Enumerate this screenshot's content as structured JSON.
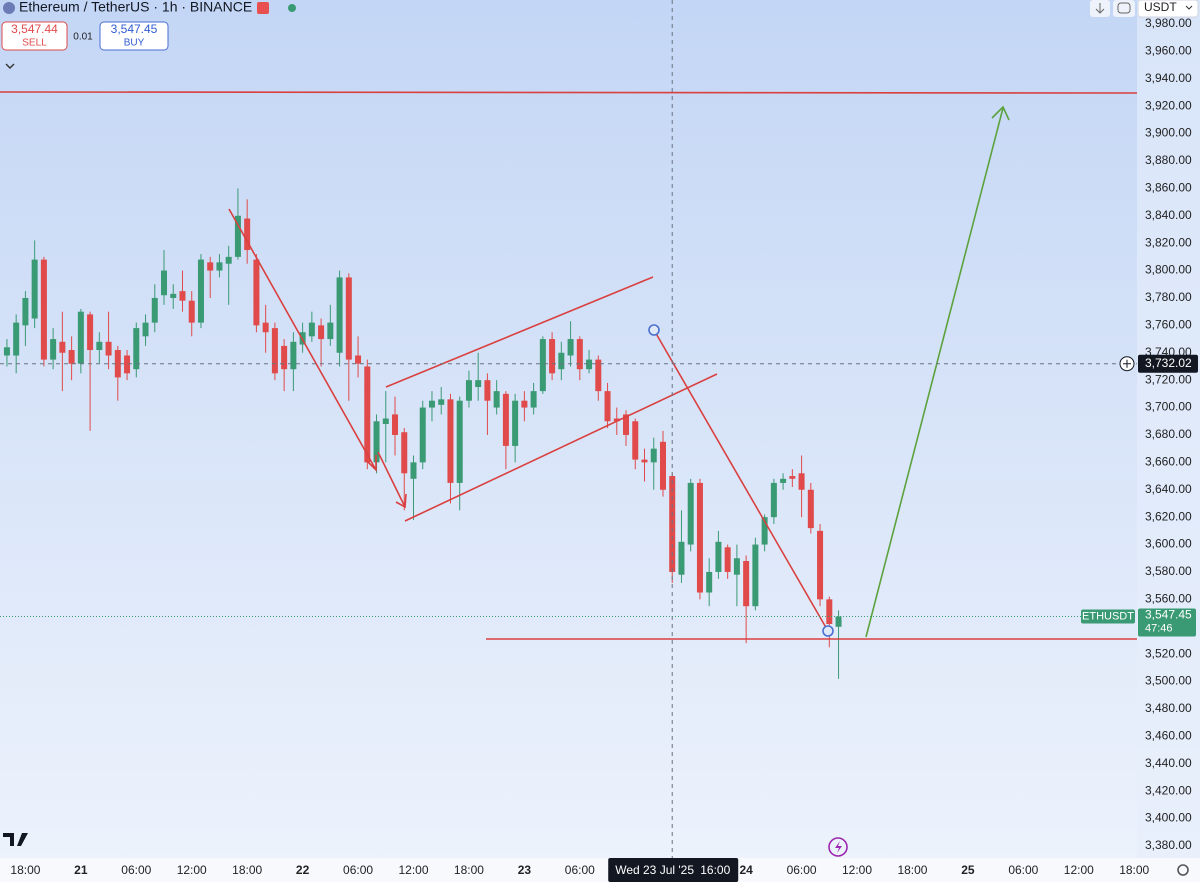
{
  "header": {
    "title": "Ethereum / TetherUS · 1h · BINANCE",
    "sell_price": "3,547.44",
    "sell_label": "SELL",
    "spread": "0.01",
    "buy_price": "3,547.45",
    "buy_label": "BUY",
    "currency": "USDT"
  },
  "chart_data": {
    "type": "candlestick",
    "x": [
      "2025-07-20T16:00",
      "2025-07-20T17:00",
      "2025-07-20T18:00",
      "2025-07-20T19:00",
      "2025-07-20T20:00",
      "2025-07-20T21:00",
      "2025-07-20T22:00",
      "2025-07-20T23:00",
      "2025-07-21T00:00",
      "2025-07-21T01:00",
      "2025-07-21T02:00",
      "2025-07-21T03:00",
      "2025-07-21T04:00",
      "2025-07-21T05:00",
      "2025-07-21T06:00",
      "2025-07-21T07:00",
      "2025-07-21T08:00",
      "2025-07-21T09:00",
      "2025-07-21T10:00",
      "2025-07-21T11:00",
      "2025-07-21T12:00",
      "2025-07-21T13:00",
      "2025-07-21T14:00",
      "2025-07-21T15:00",
      "2025-07-21T16:00",
      "2025-07-21T17:00",
      "2025-07-21T18:00",
      "2025-07-21T19:00",
      "2025-07-21T20:00",
      "2025-07-21T21:00",
      "2025-07-21T22:00",
      "2025-07-21T23:00",
      "2025-07-22T00:00",
      "2025-07-22T01:00",
      "2025-07-22T02:00",
      "2025-07-22T03:00",
      "2025-07-22T04:00",
      "2025-07-22T05:00",
      "2025-07-22T06:00",
      "2025-07-22T07:00",
      "2025-07-22T08:00",
      "2025-07-22T09:00",
      "2025-07-22T10:00",
      "2025-07-22T11:00",
      "2025-07-22T12:00",
      "2025-07-22T13:00",
      "2025-07-22T14:00",
      "2025-07-22T15:00",
      "2025-07-22T16:00",
      "2025-07-22T17:00",
      "2025-07-22T18:00",
      "2025-07-22T19:00",
      "2025-07-22T20:00",
      "2025-07-22T21:00",
      "2025-07-22T22:00",
      "2025-07-22T23:00",
      "2025-07-23T00:00",
      "2025-07-23T01:00",
      "2025-07-23T02:00",
      "2025-07-23T03:00",
      "2025-07-23T04:00",
      "2025-07-23T05:00",
      "2025-07-23T06:00",
      "2025-07-23T07:00",
      "2025-07-23T08:00",
      "2025-07-23T09:00",
      "2025-07-23T10:00",
      "2025-07-23T11:00",
      "2025-07-23T12:00",
      "2025-07-23T13:00",
      "2025-07-23T14:00",
      "2025-07-23T15:00",
      "2025-07-23T16:00",
      "2025-07-23T17:00",
      "2025-07-23T18:00",
      "2025-07-23T19:00",
      "2025-07-23T20:00",
      "2025-07-23T21:00",
      "2025-07-23T22:00",
      "2025-07-23T23:00",
      "2025-07-24T00:00",
      "2025-07-24T01:00",
      "2025-07-24T02:00",
      "2025-07-24T03:00",
      "2025-07-24T04:00",
      "2025-07-24T05:00",
      "2025-07-24T06:00",
      "2025-07-24T07:00",
      "2025-07-24T08:00",
      "2025-07-24T09:00",
      "2025-07-24T10:00"
    ],
    "open": [
      3738,
      3738,
      3760,
      3765,
      3808,
      3735,
      3748,
      3742,
      3732,
      3768,
      3742,
      3748,
      3742,
      3738,
      3728,
      3752,
      3762,
      3782,
      3780,
      3785,
      3778,
      3762,
      3806,
      3800,
      3805,
      3810,
      3838,
      3808,
      3762,
      3758,
      3745,
      3728,
      3746,
      3752,
      3760,
      3750,
      3740,
      3795,
      3738,
      3730,
      3660,
      3688,
      3695,
      3682,
      3648,
      3660,
      3700,
      3702,
      3706,
      3645,
      3705,
      3715,
      3720,
      3700,
      3710,
      3672,
      3705,
      3700,
      3712,
      3750,
      3728,
      3738,
      3750,
      3728,
      3735,
      3712,
      3692,
      3695,
      3690,
      3662,
      3660,
      3675,
      3650,
      3578,
      3600,
      3645,
      3565,
      3580,
      3598,
      3578,
      3588,
      3555,
      3600,
      3620,
      3645,
      3650,
      3652,
      3640,
      3610,
      3560,
      3540
    ],
    "high": [
      3750,
      3768,
      3785,
      3822,
      3810,
      3758,
      3770,
      3752,
      3772,
      3770,
      3755,
      3770,
      3745,
      3742,
      3762,
      3768,
      3790,
      3815,
      3790,
      3800,
      3785,
      3812,
      3810,
      3812,
      3818,
      3860,
      3852,
      3812,
      3775,
      3762,
      3750,
      3755,
      3762,
      3770,
      3765,
      3775,
      3800,
      3798,
      3752,
      3735,
      3695,
      3712,
      3708,
      3685,
      3665,
      3705,
      3712,
      3715,
      3710,
      3708,
      3727,
      3740,
      3725,
      3720,
      3712,
      3710,
      3712,
      3718,
      3752,
      3755,
      3748,
      3763,
      3752,
      3742,
      3738,
      3718,
      3700,
      3698,
      3692,
      3670,
      3678,
      3683,
      3652,
      3625,
      3648,
      3648,
      3590,
      3610,
      3600,
      3600,
      3592,
      3605,
      3622,
      3648,
      3652,
      3655,
      3665,
      3645,
      3615,
      3562,
      3552
    ],
    "low": [
      3730,
      3725,
      3745,
      3758,
      3730,
      3728,
      3712,
      3720,
      3725,
      3683,
      3732,
      3728,
      3705,
      3720,
      3722,
      3745,
      3755,
      3775,
      3772,
      3770,
      3752,
      3758,
      3780,
      3795,
      3775,
      3808,
      3805,
      3755,
      3740,
      3720,
      3712,
      3712,
      3740,
      3748,
      3730,
      3745,
      3730,
      3705,
      3722,
      3655,
      3652,
      3660,
      3665,
      3625,
      3618,
      3655,
      3690,
      3695,
      3630,
      3625,
      3700,
      3705,
      3680,
      3695,
      3655,
      3660,
      3690,
      3695,
      3710,
      3720,
      3720,
      3730,
      3720,
      3725,
      3705,
      3685,
      3680,
      3672,
      3655,
      3646,
      3640,
      3635,
      3572,
      3572,
      3595,
      3560,
      3555,
      3575,
      3575,
      3555,
      3528,
      3552,
      3595,
      3615,
      3640,
      3642,
      3620,
      3608,
      3555,
      3525,
      3502
    ],
    "close": [
      3744,
      3762,
      3780,
      3808,
      3735,
      3750,
      3740,
      3732,
      3770,
      3742,
      3748,
      3738,
      3722,
      3725,
      3758,
      3762,
      3780,
      3800,
      3783,
      3778,
      3762,
      3808,
      3800,
      3806,
      3810,
      3840,
      3815,
      3760,
      3755,
      3725,
      3728,
      3748,
      3755,
      3762,
      3750,
      3762,
      3795,
      3735,
      3732,
      3660,
      3690,
      3692,
      3680,
      3652,
      3660,
      3700,
      3705,
      3706,
      3645,
      3705,
      3720,
      3720,
      3705,
      3712,
      3672,
      3705,
      3700,
      3712,
      3750,
      3725,
      3740,
      3750,
      3728,
      3735,
      3712,
      3690,
      3690,
      3680,
      3662,
      3660,
      3670,
      3640,
      3580,
      3602,
      3645,
      3565,
      3580,
      3602,
      3580,
      3590,
      3555,
      3600,
      3620,
      3645,
      3648,
      3648,
      3640,
      3612,
      3560,
      3542,
      3547.45
    ],
    "up_color": "#3a9a74",
    "down_color": "#e04a4a",
    "ylim": [
      3371.2,
      3997.5
    ],
    "yticks": [
      {
        "value": 3380,
        "label": "3,380.00"
      },
      {
        "value": 3400,
        "label": "3,400.00"
      },
      {
        "value": 3420,
        "label": "3,420.00"
      },
      {
        "value": 3440,
        "label": "3,440.00"
      },
      {
        "value": 3460,
        "label": "3,460.00"
      },
      {
        "value": 3480,
        "label": "3,480.00"
      },
      {
        "value": 3500,
        "label": "3,500.00"
      },
      {
        "value": 3520,
        "label": "3,520.00"
      },
      {
        "value": 3540,
        "label": "3,540.00"
      },
      {
        "value": 3560,
        "label": "3,560.00"
      },
      {
        "value": 3580,
        "label": "3,580.00"
      },
      {
        "value": 3600,
        "label": "3,600.00"
      },
      {
        "value": 3620,
        "label": "3,620.00"
      },
      {
        "value": 3640,
        "label": "3,640.00"
      },
      {
        "value": 3660,
        "label": "3,660.00"
      },
      {
        "value": 3680,
        "label": "3,680.00"
      },
      {
        "value": 3700,
        "label": "3,700.00"
      },
      {
        "value": 3720,
        "label": "3,720.00"
      },
      {
        "value": 3740,
        "label": "3,740.00"
      },
      {
        "value": 3760,
        "label": "3,760.00"
      },
      {
        "value": 3780,
        "label": "3,780.00"
      },
      {
        "value": 3800,
        "label": "3,800.00"
      },
      {
        "value": 3820,
        "label": "3,820.00"
      },
      {
        "value": 3840,
        "label": "3,840.00"
      },
      {
        "value": 3860,
        "label": "3,860.00"
      },
      {
        "value": 3880,
        "label": "3,880.00"
      },
      {
        "value": 3900,
        "label": "3,900.00"
      },
      {
        "value": 3920,
        "label": "3,920.00"
      },
      {
        "value": 3940,
        "label": "3,940.00"
      },
      {
        "value": 3960,
        "label": "3,960.00"
      },
      {
        "value": 3980,
        "label": "3,980.00"
      }
    ],
    "xlim": [
      "2025-07-20T15:15",
      "2025-07-25T18:18"
    ],
    "xticks": [
      {
        "value": "2025-07-20T18:00",
        "label": "18:00"
      },
      {
        "value": "2025-07-21T00:00",
        "label": "21"
      },
      {
        "value": "2025-07-21T06:00",
        "label": "06:00"
      },
      {
        "value": "2025-07-21T12:00",
        "label": "12:00"
      },
      {
        "value": "2025-07-21T18:00",
        "label": "18:00"
      },
      {
        "value": "2025-07-22T00:00",
        "label": "22"
      },
      {
        "value": "2025-07-22T06:00",
        "label": "06:00"
      },
      {
        "value": "2025-07-22T12:00",
        "label": "12:00"
      },
      {
        "value": "2025-07-22T18:00",
        "label": "18:00"
      },
      {
        "value": "2025-07-23T00:00",
        "label": "23"
      },
      {
        "value": "2025-07-23T06:00",
        "label": "06:00"
      },
      {
        "value": "2025-07-23T12:00",
        "label": "12:00"
      },
      {
        "value": "2025-07-23T18:00",
        "label": "18:00"
      },
      {
        "value": "2025-07-24T00:00",
        "label": "24"
      },
      {
        "value": "2025-07-24T06:00",
        "label": "06:00"
      },
      {
        "value": "2025-07-24T12:00",
        "label": "12:00"
      },
      {
        "value": "2025-07-24T18:00",
        "label": "18:00"
      },
      {
        "value": "2025-07-25T00:00",
        "label": "25"
      },
      {
        "value": "2025-07-25T06:00",
        "label": "06:00"
      },
      {
        "value": "2025-07-25T12:00",
        "label": "12:00"
      },
      {
        "value": "2025-07-25T18:00",
        "label": "18:00"
      }
    ],
    "grid": true,
    "crosshair": {
      "x": "2025-07-23T16:00",
      "date_label": "Wed 23 Jul '25",
      "time_label": "16:00",
      "y": 3732.02,
      "y_label": "3,732.02"
    },
    "last_price": {
      "symbol": "ETHUSDT",
      "value": 3547.45,
      "label": "3,547.45",
      "countdown": "47:46"
    }
  }
}
